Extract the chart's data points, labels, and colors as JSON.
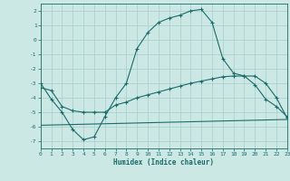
{
  "xlabel": "Humidex (Indice chaleur)",
  "xlim": [
    0,
    23
  ],
  "ylim": [
    -7.5,
    2.5
  ],
  "yticks": [
    2,
    1,
    0,
    -1,
    -2,
    -3,
    -4,
    -5,
    -6,
    -7
  ],
  "xticks": [
    0,
    1,
    2,
    3,
    4,
    5,
    6,
    7,
    8,
    9,
    10,
    11,
    12,
    13,
    14,
    15,
    16,
    17,
    18,
    19,
    20,
    21,
    22,
    23
  ],
  "bg_color": "#cce8e5",
  "grid_color": "#a8ccca",
  "line_color": "#1a6b6b",
  "curve1_x": [
    0,
    1,
    2,
    3,
    4,
    5,
    6,
    7,
    8,
    9,
    10,
    11,
    12,
    13,
    14,
    15,
    16,
    17,
    18,
    19,
    20,
    21,
    22,
    23
  ],
  "curve1_y": [
    -3.0,
    -4.1,
    -5.0,
    -6.2,
    -6.9,
    -6.7,
    -5.3,
    -4.0,
    -3.0,
    -0.6,
    0.5,
    1.2,
    1.5,
    1.7,
    2.0,
    2.1,
    1.2,
    -1.3,
    -2.3,
    -2.5,
    -3.1,
    -4.1,
    -4.6,
    -5.3
  ],
  "curve2_x": [
    0,
    1,
    2,
    3,
    4,
    5,
    6,
    7,
    8,
    9,
    10,
    11,
    12,
    13,
    14,
    15,
    16,
    17,
    18,
    19,
    20,
    21,
    22,
    23
  ],
  "curve2_y": [
    -3.3,
    -3.5,
    -4.6,
    -4.9,
    -5.0,
    -5.0,
    -5.0,
    -4.5,
    -4.3,
    -4.0,
    -3.8,
    -3.6,
    -3.4,
    -3.2,
    -3.0,
    -2.85,
    -2.7,
    -2.55,
    -2.5,
    -2.5,
    -2.5,
    -3.0,
    -4.0,
    -5.4
  ],
  "curve3_x": [
    0,
    23
  ],
  "curve3_y": [
    -5.9,
    -5.5
  ]
}
